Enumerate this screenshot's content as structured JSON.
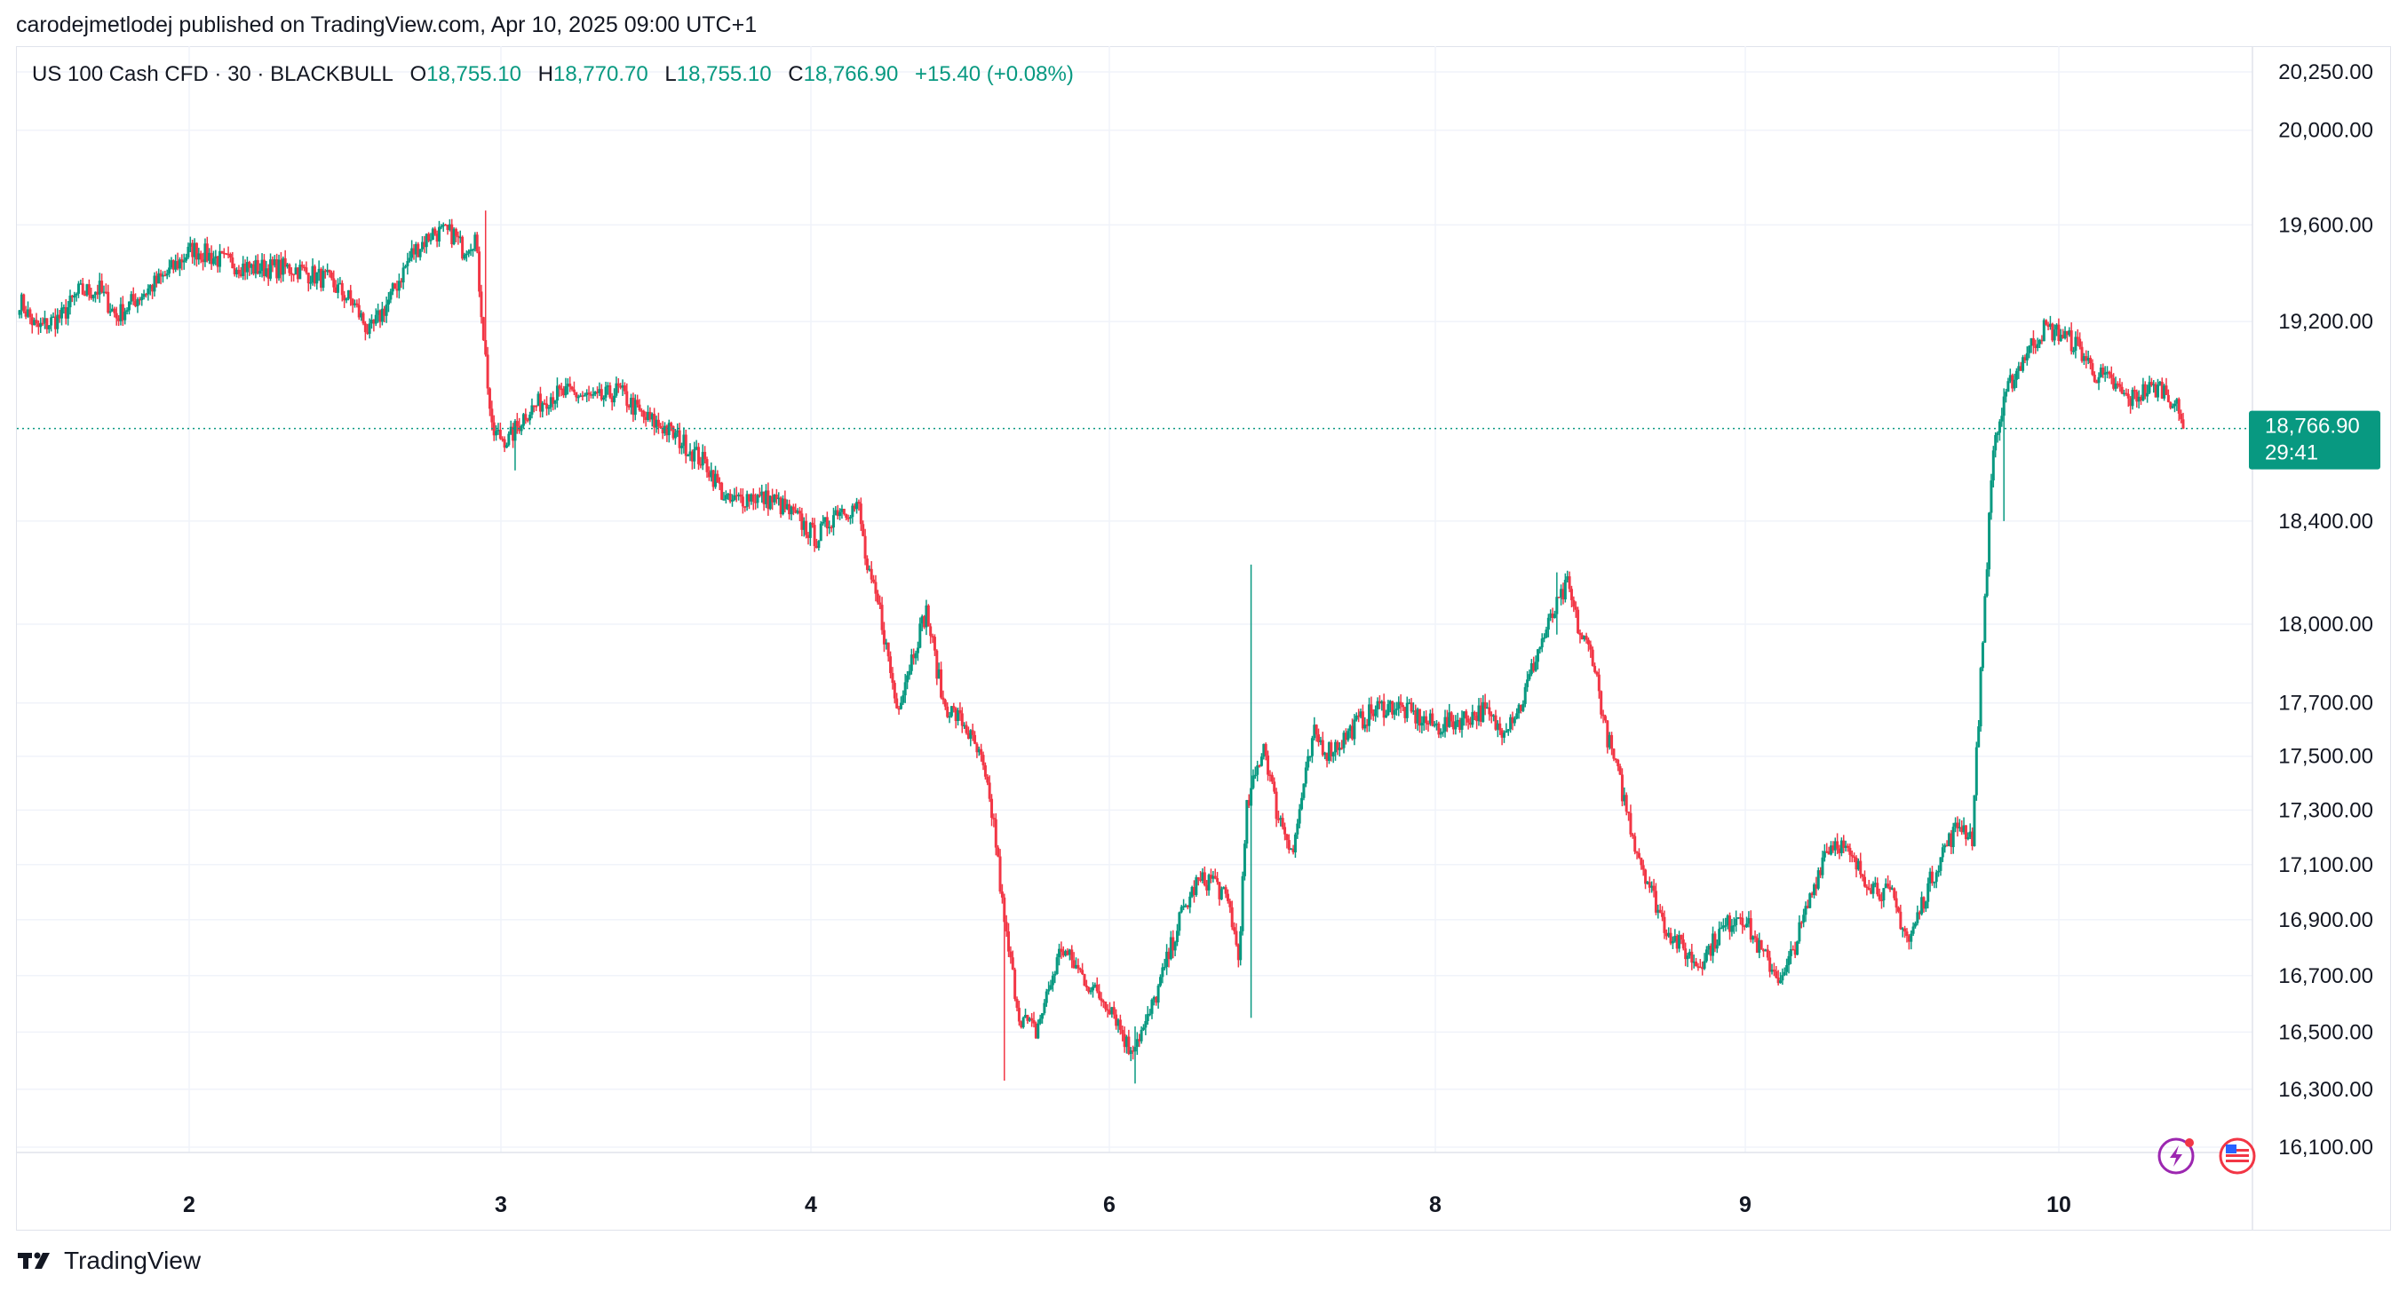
{
  "header": {
    "published_text": "carodejmetlodej published on TradingView.com, Apr 10, 2025 09:00 UTC+1"
  },
  "legend": {
    "symbol": "US 100 Cash CFD · 30 · BLACKBULL",
    "open_label": "O",
    "open": "18,755.10",
    "high_label": "H",
    "high": "18,770.70",
    "low_label": "L",
    "low": "18,755.10",
    "close_label": "C",
    "close": "18,766.90",
    "change": "+15.40 (+0.08%)"
  },
  "price_badge": {
    "price": "18,766.90",
    "countdown": "29:41"
  },
  "footer": {
    "brand": "TradingView"
  },
  "colors": {
    "up": "#089981",
    "down": "#f23645",
    "grid": "#f0f3fa",
    "axis_text": "#131722",
    "last_price_line": "#089981"
  },
  "icons": [
    "lightning-icon",
    "us-flag-icon",
    "tradingview-logo-icon"
  ],
  "chart_data": {
    "type": "candlestick",
    "title": "US 100 Cash CFD · 30 · BLACKBULL",
    "timeframe": "30",
    "y_ticks": [
      16100,
      16300,
      16500,
      16700,
      16900,
      17100,
      17300,
      17500,
      17700,
      18000,
      18400,
      19200,
      19600,
      20000,
      20250
    ],
    "y_tick_labels": [
      "16,100.00",
      "16,300.00",
      "16,500.00",
      "16,700.00",
      "16,900.00",
      "17,100.00",
      "17,300.00",
      "17,500.00",
      "17,700.00",
      "18,000.00",
      "18,400.00",
      "19,200.00",
      "19,600.00",
      "20,000.00",
      "20,250.00"
    ],
    "x_labels": [
      "2",
      "3",
      "4",
      "6",
      "8",
      "9",
      "10"
    ],
    "last_price": 18766.9,
    "y_scale": "log",
    "ylim": [
      16050,
      20300
    ],
    "grid": true,
    "anchors": [
      [
        0,
        19290
      ],
      [
        8,
        19170
      ],
      [
        20,
        19220
      ],
      [
        28,
        19320
      ],
      [
        38,
        19330
      ],
      [
        46,
        19220
      ],
      [
        56,
        19300
      ],
      [
        68,
        19380
      ],
      [
        82,
        19500
      ],
      [
        96,
        19450
      ],
      [
        110,
        19420
      ],
      [
        130,
        19420
      ],
      [
        146,
        19370
      ],
      [
        158,
        19280
      ],
      [
        166,
        19150
      ],
      [
        176,
        19300
      ],
      [
        186,
        19480
      ],
      [
        196,
        19570
      ],
      [
        206,
        19560
      ],
      [
        210,
        19500
      ],
      [
        216,
        19550
      ],
      [
        220,
        19150
      ],
      [
        224,
        18750
      ],
      [
        232,
        18720
      ],
      [
        240,
        18830
      ],
      [
        252,
        18900
      ],
      [
        262,
        18910
      ],
      [
        274,
        18880
      ],
      [
        284,
        18920
      ],
      [
        296,
        18810
      ],
      [
        306,
        18770
      ],
      [
        316,
        18700
      ],
      [
        326,
        18620
      ],
      [
        336,
        18470
      ],
      [
        346,
        18500
      ],
      [
        358,
        18480
      ],
      [
        370,
        18400
      ],
      [
        378,
        18330
      ],
      [
        388,
        18450
      ],
      [
        398,
        18450
      ],
      [
        402,
        18200
      ],
      [
        408,
        18050
      ],
      [
        416,
        17680
      ],
      [
        424,
        17900
      ],
      [
        430,
        18050
      ],
      [
        438,
        17700
      ],
      [
        448,
        17620
      ],
      [
        456,
        17480
      ],
      [
        462,
        17250
      ],
      [
        467,
        16880
      ],
      [
        474,
        16560
      ],
      [
        482,
        16500
      ],
      [
        488,
        16650
      ],
      [
        494,
        16800
      ],
      [
        502,
        16720
      ],
      [
        510,
        16640
      ],
      [
        518,
        16590
      ],
      [
        526,
        16440
      ],
      [
        534,
        16520
      ],
      [
        542,
        16700
      ],
      [
        550,
        16900
      ],
      [
        558,
        17030
      ],
      [
        566,
        17050
      ],
      [
        574,
        16940
      ],
      [
        578,
        16760
      ],
      [
        582,
        17300
      ],
      [
        590,
        17550
      ],
      [
        596,
        17300
      ],
      [
        604,
        17150
      ],
      [
        608,
        17350
      ],
      [
        614,
        17580
      ],
      [
        620,
        17520
      ],
      [
        626,
        17550
      ],
      [
        634,
        17620
      ],
      [
        644,
        17680
      ],
      [
        652,
        17690
      ],
      [
        662,
        17650
      ],
      [
        672,
        17610
      ],
      [
        684,
        17640
      ],
      [
        694,
        17670
      ],
      [
        702,
        17600
      ],
      [
        712,
        17690
      ],
      [
        720,
        17900
      ],
      [
        728,
        18050
      ],
      [
        734,
        18150
      ],
      [
        740,
        17960
      ],
      [
        746,
        17880
      ],
      [
        752,
        17600
      ],
      [
        758,
        17430
      ],
      [
        766,
        17180
      ],
      [
        774,
        17000
      ],
      [
        780,
        16880
      ],
      [
        788,
        16800
      ],
      [
        796,
        16740
      ],
      [
        806,
        16850
      ],
      [
        816,
        16930
      ],
      [
        826,
        16780
      ],
      [
        836,
        16680
      ],
      [
        846,
        16900
      ],
      [
        856,
        17150
      ],
      [
        862,
        17190
      ],
      [
        870,
        17100
      ],
      [
        878,
        17030
      ],
      [
        888,
        16980
      ],
      [
        896,
        16820
      ],
      [
        904,
        17000
      ],
      [
        912,
        17150
      ],
      [
        920,
        17250
      ],
      [
        926,
        17200
      ],
      [
        930,
        17800
      ],
      [
        936,
        18700
      ],
      [
        944,
        18950
      ],
      [
        952,
        19080
      ],
      [
        960,
        19170
      ],
      [
        968,
        19150
      ],
      [
        976,
        19100
      ],
      [
        984,
        18990
      ],
      [
        992,
        18950
      ],
      [
        1000,
        18880
      ],
      [
        1008,
        18920
      ],
      [
        1016,
        18930
      ],
      [
        1022,
        18870
      ],
      [
        1026,
        18766.9
      ]
    ],
    "volatility_events": [
      [
        221,
        19660,
        19150
      ],
      [
        235,
        18760,
        18600
      ],
      [
        467,
        16900,
        16330
      ],
      [
        529,
        16520,
        16320
      ],
      [
        584,
        18230,
        16550
      ],
      [
        729,
        18200,
        17960
      ],
      [
        941,
        18600,
        18400
      ]
    ]
  }
}
